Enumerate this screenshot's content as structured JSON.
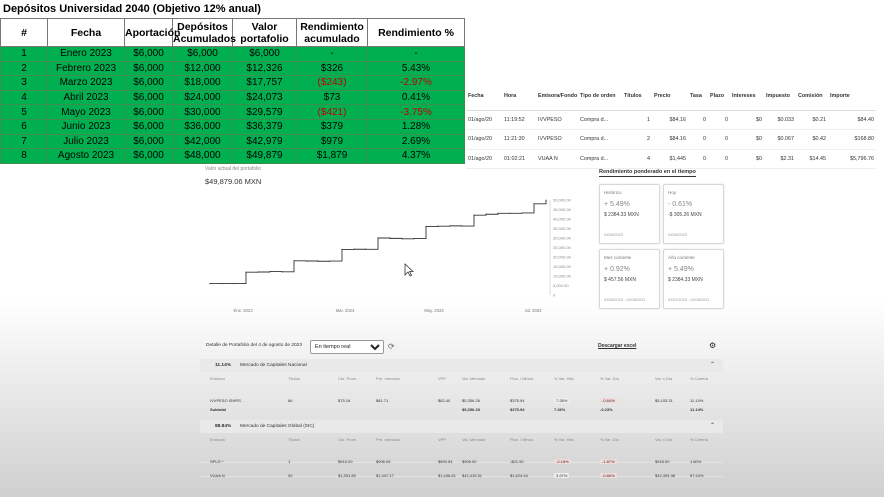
{
  "sheet": {
    "title": "Depósitos Universidad 2040 (Objetivo 12% anual)",
    "headers": [
      "#",
      "Fecha",
      "Aportación",
      "Depósitos Acumulados",
      "Valor portafolio",
      "Rendimiento acumulado",
      "Rendimiento %"
    ],
    "rows": [
      [
        "1",
        "Enero 2023",
        "$6,000",
        "$6,000",
        "$6,000",
        "-",
        "-"
      ],
      [
        "2",
        "Febrero 2023",
        "$6,000",
        "$12,000",
        "$12,326",
        "$326",
        "5.43%"
      ],
      [
        "3",
        "Marzo 2023",
        "$6,000",
        "$18,000",
        "$17,757",
        "($243)",
        "-2.97%"
      ],
      [
        "4",
        "Abril 2023",
        "$6,000",
        "$24,000",
        "$24,073",
        "$73",
        "0.41%"
      ],
      [
        "5",
        "Mayo 2023",
        "$6,000",
        "$30,000",
        "$29,579",
        "($421)",
        "-3.75%"
      ],
      [
        "6",
        "Junio 2023",
        "$6,000",
        "$36,000",
        "$36,379",
        "$379",
        "1.28%"
      ],
      [
        "7",
        "Julio 2023",
        "$6,000",
        "$42,000",
        "$42,979",
        "$979",
        "2.69%"
      ],
      [
        "8",
        "Agosto 2023",
        "$6,000",
        "$48,000",
        "$49,879",
        "$1,879",
        "4.37%"
      ]
    ],
    "negative_rows": [
      2,
      4
    ],
    "fill_color": "#00b050",
    "negative_color": "#c00000"
  },
  "transactions": {
    "headers": [
      "Fecha",
      "Hora",
      "Emisora/Fondo",
      "Tipo de orden",
      "Títulos",
      "Precio",
      "Tasa",
      "Plazo",
      "Intereses",
      "Impuesto",
      "Comisión",
      "Importe"
    ],
    "rows": [
      [
        "01/ago/20",
        "11:19:52",
        "IVVPESO",
        "Compra d...",
        "1",
        "$84.16",
        "0",
        "0",
        "$0",
        "$0.033",
        "$0.21",
        "$84.40"
      ],
      [
        "01/ago/20",
        "11:21:30",
        "IVVPESO",
        "Compra d...",
        "2",
        "$84.16",
        "0",
        "0",
        "$0",
        "$0.067",
        "$0.42",
        "$168.80"
      ],
      [
        "01/ago/20",
        "01:02:21",
        "VUAA N",
        "Compra d...",
        "4",
        "$1,445",
        "0",
        "0",
        "$0",
        "$2.31",
        "$14.45",
        "$5,796.76"
      ]
    ]
  },
  "portfolio": {
    "label": "Valor actual del portafolio",
    "value": "$49,879.06 MXN"
  },
  "chart_data": {
    "type": "line",
    "title": "",
    "xlabel": "",
    "ylabel": "",
    "x_ticks": [
      "Ene. 2023",
      "Mar. 2023",
      "May. 2023",
      "Jul. 2023"
    ],
    "y_ticks": [
      "0",
      "5,000.00",
      "10,000.00",
      "15,000.00",
      "20,000.00",
      "25,000.00",
      "30,000.00",
      "35,000.00",
      "40,000.00",
      "45,000.00",
      "50,000.00"
    ],
    "ylim": [
      0,
      50000
    ],
    "series": [
      {
        "values": [
          6000,
          6010,
          6030,
          12000,
          12100,
          12326,
          12200,
          18000,
          17900,
          17757,
          17850,
          24000,
          24073,
          24050,
          30000,
          29800,
          29579,
          29700,
          36000,
          36200,
          36379,
          36300,
          42000,
          42500,
          42979,
          43000,
          43200,
          48000,
          49879
        ]
      }
    ],
    "line_color": "#333333"
  },
  "yield_cards": {
    "title": "Rendimiento ponderado en el tiempo",
    "cards": [
      {
        "label": "Histórico",
        "pct": "+ 5.49%",
        "amount": "$ 2384.33 MXN",
        "date": "04/08/2023"
      },
      {
        "label": "Hoy",
        "pct": "- 0.61%",
        "amount": "-$ 305.26 MXN",
        "date": "04/08/2023"
      },
      {
        "label": "Mes corriente",
        "pct": "+ 0.92%",
        "amount": "$ 457.56 MXN",
        "date": "01/08/2023 - 04/08/2023"
      },
      {
        "label": "Año corriente",
        "pct": "+ 5.49%",
        "amount": "$ 2384.33 MXN",
        "date": "01/01/2023 - 04/08/2023"
      }
    ]
  },
  "detail": {
    "header": "Detalle de Portafolio del 4 de agosto de 2023",
    "select_value": "En tiempo real",
    "download": "Descargar excel",
    "columns": [
      "Emisora",
      "Títulos",
      "Cto. Prom.",
      "Pre. mercado",
      "VPP",
      "Val. Mercado",
      "Plus. / Minus.",
      "% Var. Hist.",
      "% Var. Día",
      "Var. x Día",
      "% Cartera"
    ],
    "sections": [
      {
        "pct": "11.14%",
        "name": "Mercado de Capitales Nacional",
        "rows": [
          [
            "IVVPESO ISHRS",
            "66",
            "$75.16",
            "$81.71",
            "$82.40",
            "$5,356.28",
            "$375.94",
            "7.26%",
            "-0.64%",
            "$5,193.31",
            "11.14%"
          ]
        ],
        "subtotal": [
          "Subtotal",
          "$5,356.28",
          "$375.94",
          "7.26%",
          "-0.23%",
          "11.14%"
        ]
      },
      {
        "pct": "88.84%",
        "name": "Mercado de Capitales Global (SIC)",
        "rows": [
          [
            "SPLG *",
            "1",
            "$915.00",
            "$906.05",
            "$893.54",
            "$906.00",
            "-$21.90",
            "-2.18%",
            "-1.87%",
            "$918.00",
            "1.60%"
          ],
          [
            "VUAA N",
            "30",
            "$1,391.80",
            "$1,447.17",
            "$1,446.61",
            "$42,415.51",
            "$1,624.44",
            "3.97%",
            "-0.66%",
            "$42,494.38",
            "87.24%"
          ]
        ]
      }
    ]
  }
}
